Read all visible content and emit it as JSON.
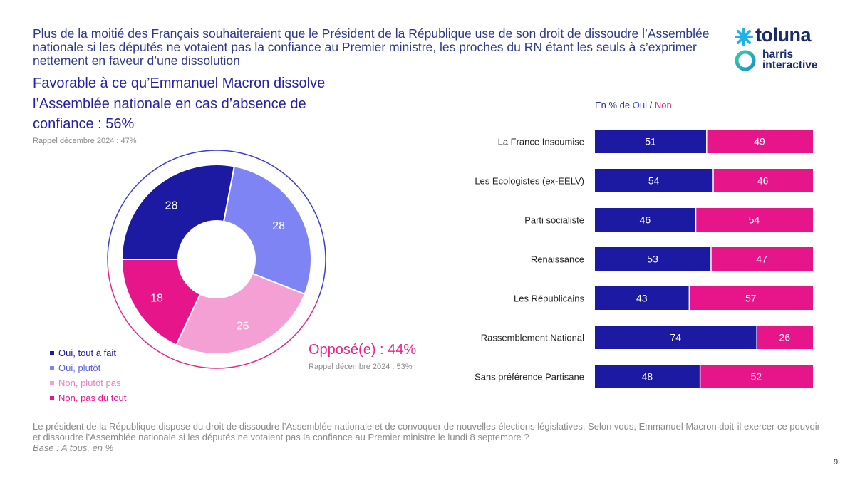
{
  "headline": "Plus de la moitié des Français souhaiteraient que le Président de la République use de son droit de dissoudre l’Assemblée nationale si les députés ne votaient pas la confiance au Premier ministre, les proches du RN étant les seuls à s’exprimer nettement en faveur d’une dissolution",
  "logo": {
    "toluna": "toluna",
    "harris_line1": "harris",
    "harris_line2": "interactive"
  },
  "favorable": {
    "title": "Favorable à ce qu’Emmanuel Macron dissolve l’Assemblée nationale en cas d’absence de confiance : 56%",
    "rappel": "Rappel décembre 2024 : 47%"
  },
  "oppose": {
    "title": "Opposé(e) : 44%",
    "rappel": "Rappel décembre 2024 : 53%"
  },
  "bar_caption": {
    "prefix": "En % de ",
    "oui": "Oui",
    "sep": " / ",
    "non": "Non"
  },
  "colors": {
    "oui_tout_a_fait": "#1c1aa3",
    "oui_plutot": "#7f84f4",
    "non_plutot_pas": "#f5a0d4",
    "non_pas_du_tout": "#e6158a",
    "favorable_arc": "#3b3fd0",
    "oppose_arc": "#e6268a"
  },
  "chart_data": [
    {
      "type": "pie",
      "categories": [
        "Oui, tout à fait",
        "Oui, plutôt",
        "Non, plutôt pas",
        "Non, pas du tout"
      ],
      "values": [
        28,
        28,
        26,
        18
      ],
      "legend": "bottom-left"
    },
    {
      "type": "bar",
      "orientation": "horizontal",
      "stacked": true,
      "categories": [
        "La France Insoumise",
        "Les Ecologistes (ex-EELV)",
        "Parti socialiste",
        "Renaissance",
        "Les Républicains",
        "Rassemblement National",
        "Sans préférence Partisane"
      ],
      "series": [
        {
          "name": "Oui",
          "values": [
            51,
            54,
            46,
            53,
            43,
            74,
            48
          ]
        },
        {
          "name": "Non",
          "values": [
            49,
            46,
            54,
            47,
            57,
            26,
            52
          ]
        }
      ],
      "xlim": [
        0,
        100
      ]
    }
  ],
  "footnote": {
    "question": "Le président de la République dispose du droit de dissoudre l’Assemblée nationale et de convoquer de nouvelles élections législatives. Selon vous, Emmanuel Macron doit-il exercer ce pouvoir et dissoudre l’Assemblée nationale si les députés ne votaient pas la confiance au Premier ministre le lundi 8 septembre ?",
    "base": "Base : A tous, en %"
  },
  "page_number": "9"
}
